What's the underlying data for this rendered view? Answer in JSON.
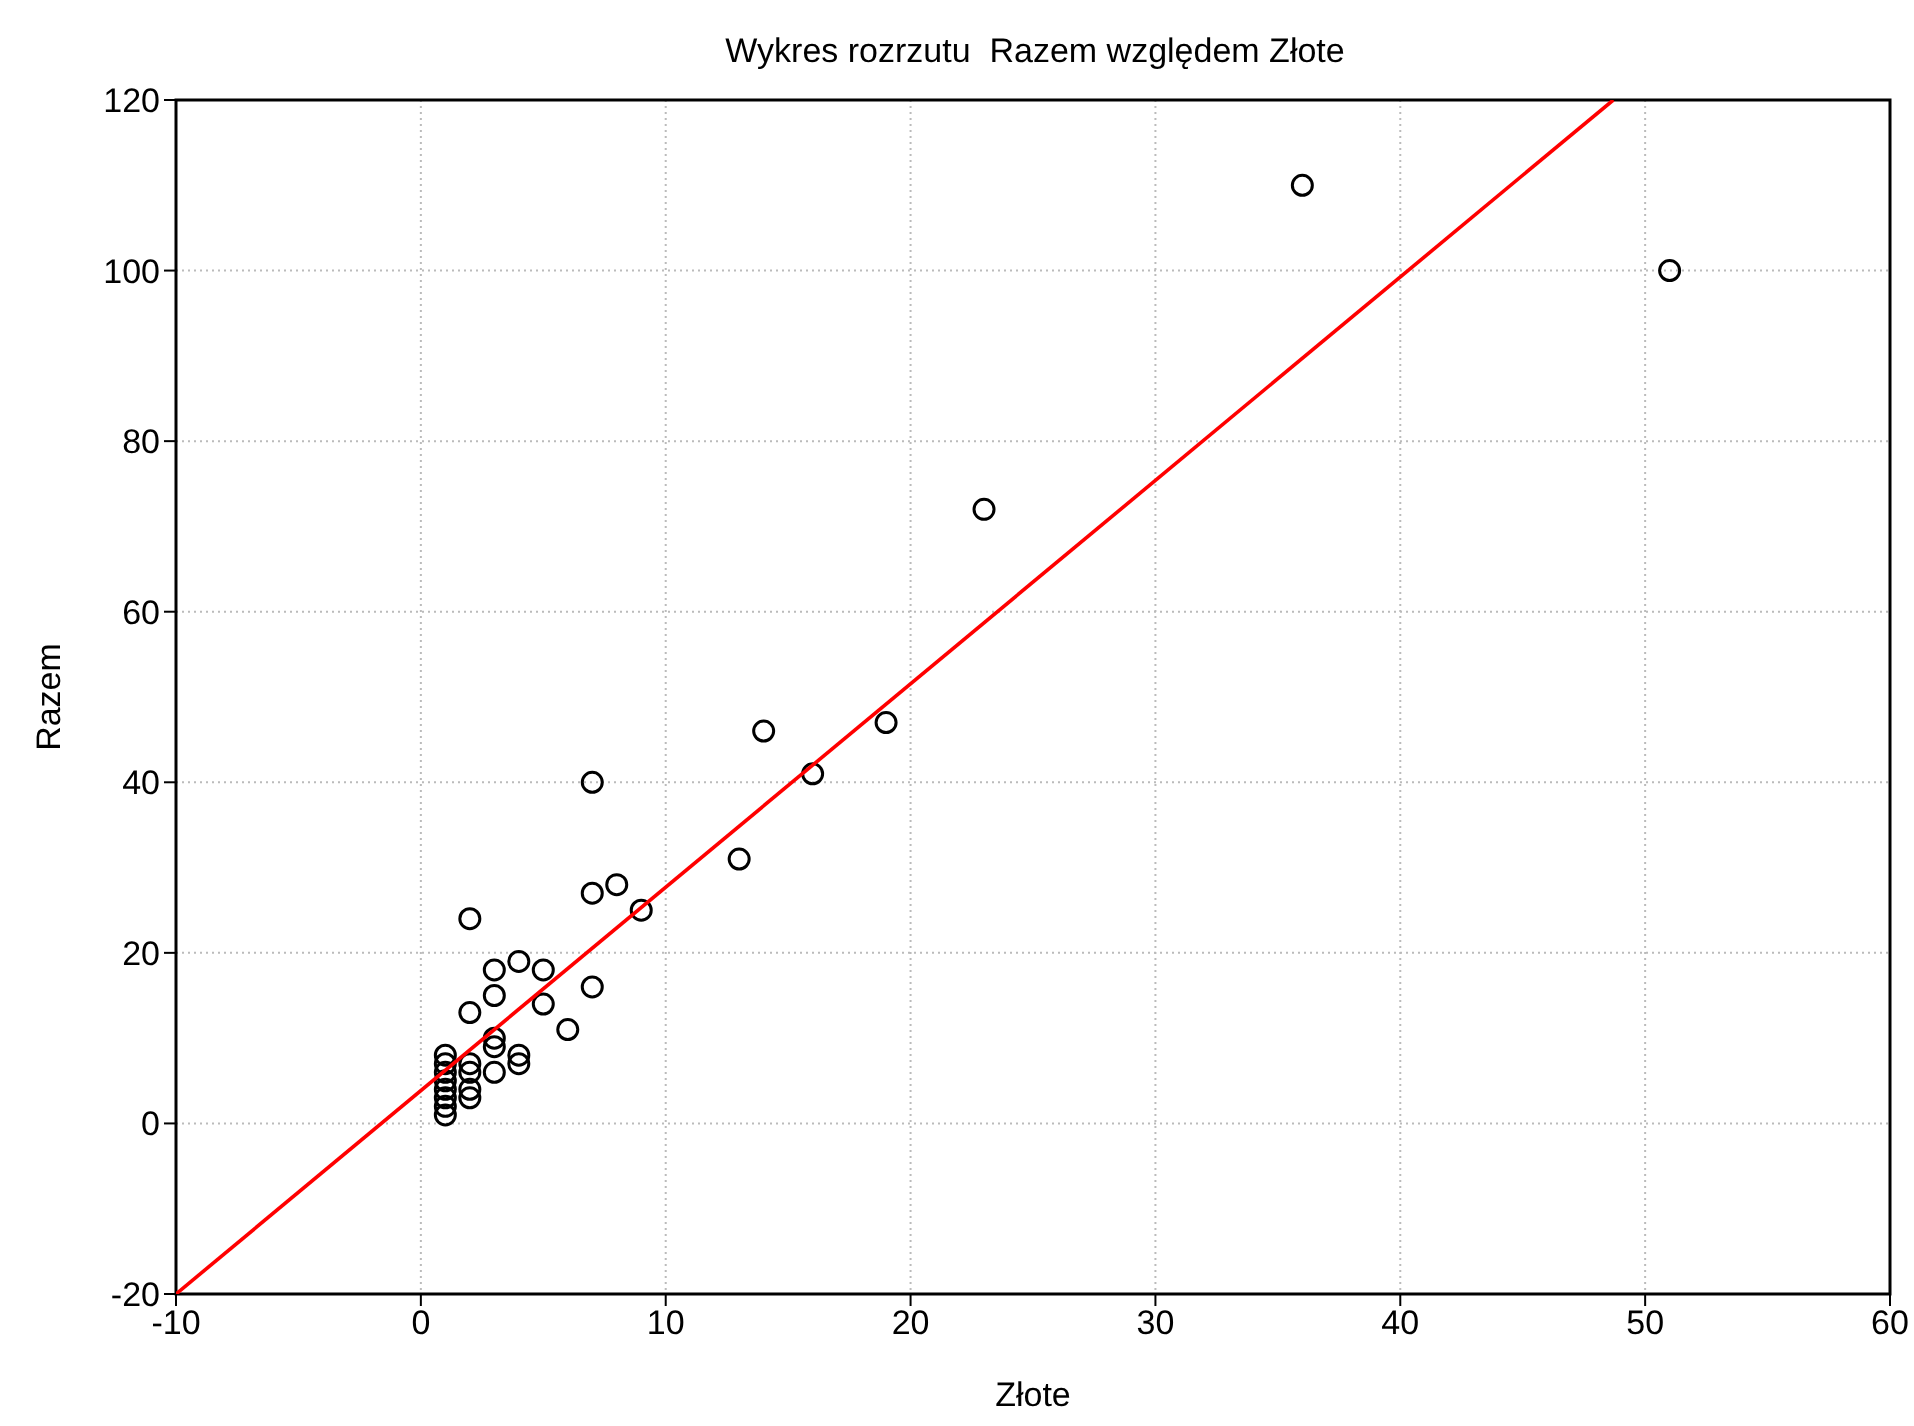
{
  "chart_data": {
    "type": "scatter",
    "title": "Wykres rozrzutu  Razem względem Złote",
    "xlabel": "Złote",
    "ylabel": "Razem",
    "xlim": [
      -10,
      60
    ],
    "xticks": [
      -10,
      0,
      10,
      20,
      30,
      40,
      50,
      60
    ],
    "ylim": [
      -20,
      120
    ],
    "yticks": [
      -20,
      0,
      20,
      40,
      60,
      80,
      100,
      120
    ],
    "grid": true,
    "marker": "circle",
    "series": [
      {
        "color": "#000000",
        "x": [
          1,
          1,
          1,
          1,
          1,
          1,
          1,
          1,
          2,
          2,
          2,
          2,
          2,
          2,
          3,
          3,
          3,
          3,
          3,
          4,
          4,
          4,
          5,
          5,
          6,
          7,
          7,
          7,
          8,
          9,
          13,
          14,
          16,
          19,
          23,
          36,
          51
        ],
        "values": [
          1,
          2,
          3,
          4,
          5,
          6,
          7,
          8,
          3,
          4,
          6,
          7,
          13,
          24,
          6,
          9,
          10,
          15,
          18,
          7,
          8,
          19,
          14,
          18,
          11,
          16,
          27,
          40,
          28,
          25,
          31,
          46,
          41,
          47,
          72,
          110,
          100
        ]
      },
      {
        "type": "line",
        "color": "#ff0000",
        "marker": "none",
        "x": [
          -10,
          48.7
        ],
        "values": [
          -20,
          120
        ]
      }
    ]
  }
}
